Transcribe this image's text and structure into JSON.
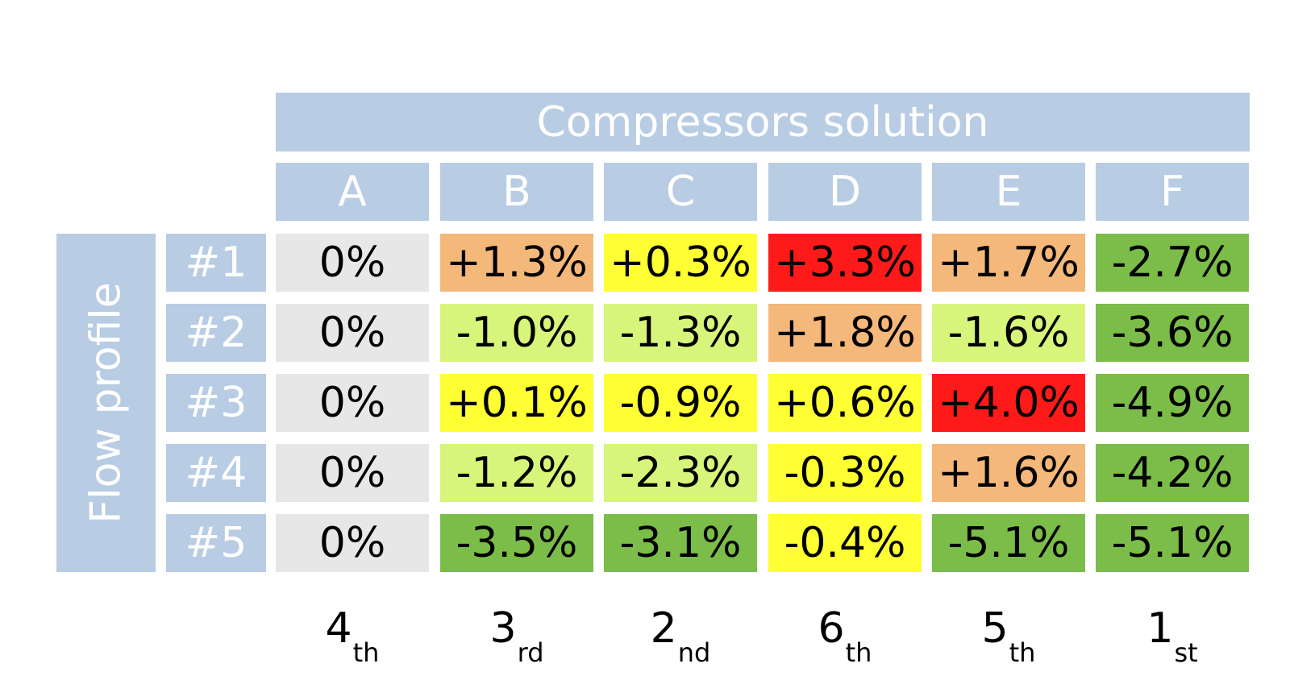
{
  "chart_data": {
    "type": "table",
    "title": "Compressors solution",
    "row_axis_title": "Flow profile",
    "columns": [
      "A",
      "B",
      "C",
      "D",
      "E",
      "F"
    ],
    "rows": [
      "#1",
      "#2",
      "#3",
      "#4",
      "#5"
    ],
    "cells": [
      [
        "0%",
        "+1.3%",
        "+0.3%",
        "+3.3%",
        "+1.7%",
        "-2.7%"
      ],
      [
        "0%",
        "-1.0%",
        "-1.3%",
        "+1.8%",
        "-1.6%",
        "-3.6%"
      ],
      [
        "0%",
        "+0.1%",
        "-0.9%",
        "+0.6%",
        "+4.0%",
        "-4.9%"
      ],
      [
        "0%",
        "-1.2%",
        "-2.3%",
        "-0.3%",
        "+1.6%",
        "-4.2%"
      ],
      [
        "0%",
        "-3.5%",
        "-3.1%",
        "-0.4%",
        "-5.1%",
        "-5.1%"
      ]
    ],
    "cell_colors": [
      [
        "#e7e7e7",
        "#f4b87a",
        "#ffff33",
        "#ff1a1a",
        "#f4b87a",
        "#7bbd48"
      ],
      [
        "#e7e7e7",
        "#d6f57a",
        "#d6f57a",
        "#f4b87a",
        "#d6f57a",
        "#7bbd48"
      ],
      [
        "#e7e7e7",
        "#ffff33",
        "#ffff33",
        "#ffff33",
        "#ff1a1a",
        "#7bbd48"
      ],
      [
        "#e7e7e7",
        "#d6f57a",
        "#d6f57a",
        "#ffff33",
        "#f4b87a",
        "#7bbd48"
      ],
      [
        "#e7e7e7",
        "#7bbd48",
        "#7bbd48",
        "#ffff33",
        "#7bbd48",
        "#7bbd48"
      ]
    ],
    "ranks": [
      {
        "num": "4",
        "suffix": "th"
      },
      {
        "num": "3",
        "suffix": "rd"
      },
      {
        "num": "2",
        "suffix": "nd"
      },
      {
        "num": "6",
        "suffix": "th"
      },
      {
        "num": "5",
        "suffix": "th"
      },
      {
        "num": "1",
        "suffix": "st"
      }
    ],
    "header_color": "#b8cce4"
  }
}
